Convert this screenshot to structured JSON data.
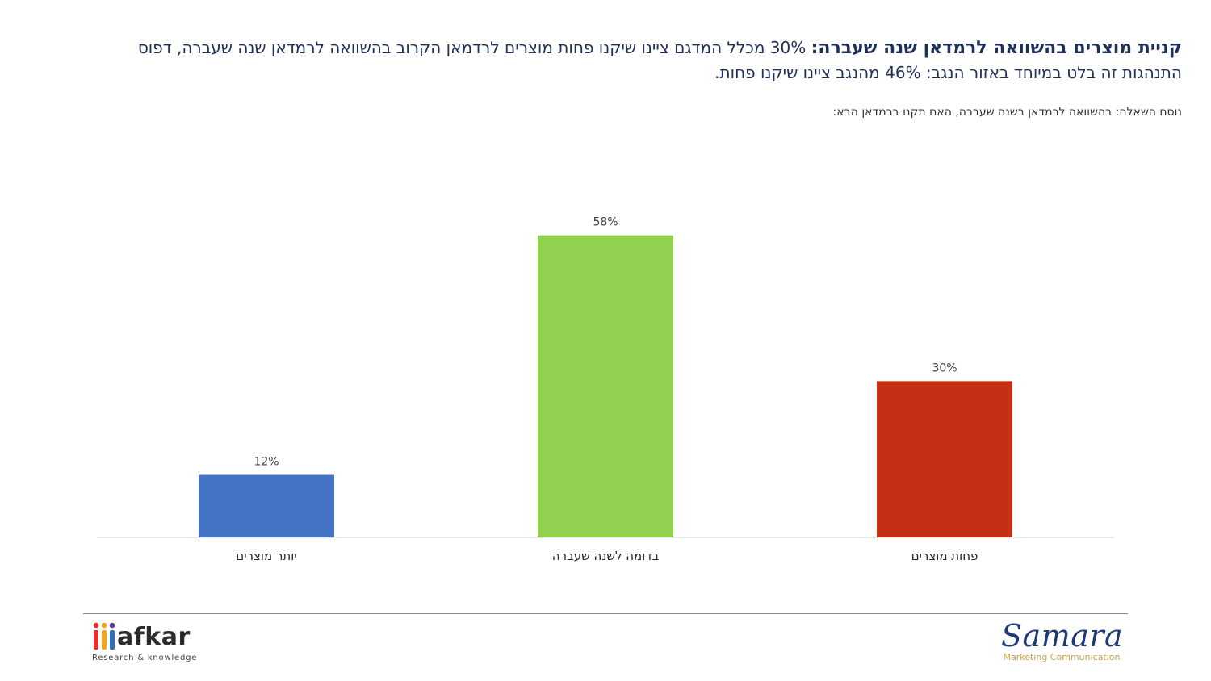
{
  "headline": {
    "bold": "קניית מוצרים בהשוואה לרמדאן שנה שעברה:",
    "text": " 30% מכלל המדגם ציינו שיקנו פחות מוצרים לרדמאן הקרוב בהשוואה לרמדאן שנה שעברה, דפוס התנהגות זה בלט במיוחד באזור הנגב: 46% מהנגב ציינו שיקנו פחות."
  },
  "question": "נוסח השאלה: בהשוואה לרמדאן בשנה שעברה, האם תקנו ברמדאן הבא:",
  "chart_data": {
    "type": "bar",
    "categories": [
      "יותר מוצרים",
      "בדומה לשנה שעברה",
      "פחות מוצרים"
    ],
    "values": [
      12,
      58,
      30
    ],
    "value_labels": [
      "12%",
      "58%",
      "30%"
    ],
    "colors": [
      "#4472c4",
      "#92d050",
      "#c53015"
    ],
    "ylim": [
      0,
      66
    ],
    "grid": false,
    "legend": "none"
  },
  "logos": {
    "afkar": {
      "word": "afkar",
      "tagline": "Research & knowledge"
    },
    "samara": {
      "word": "Samara",
      "tagline": "Marketing Communication"
    }
  }
}
